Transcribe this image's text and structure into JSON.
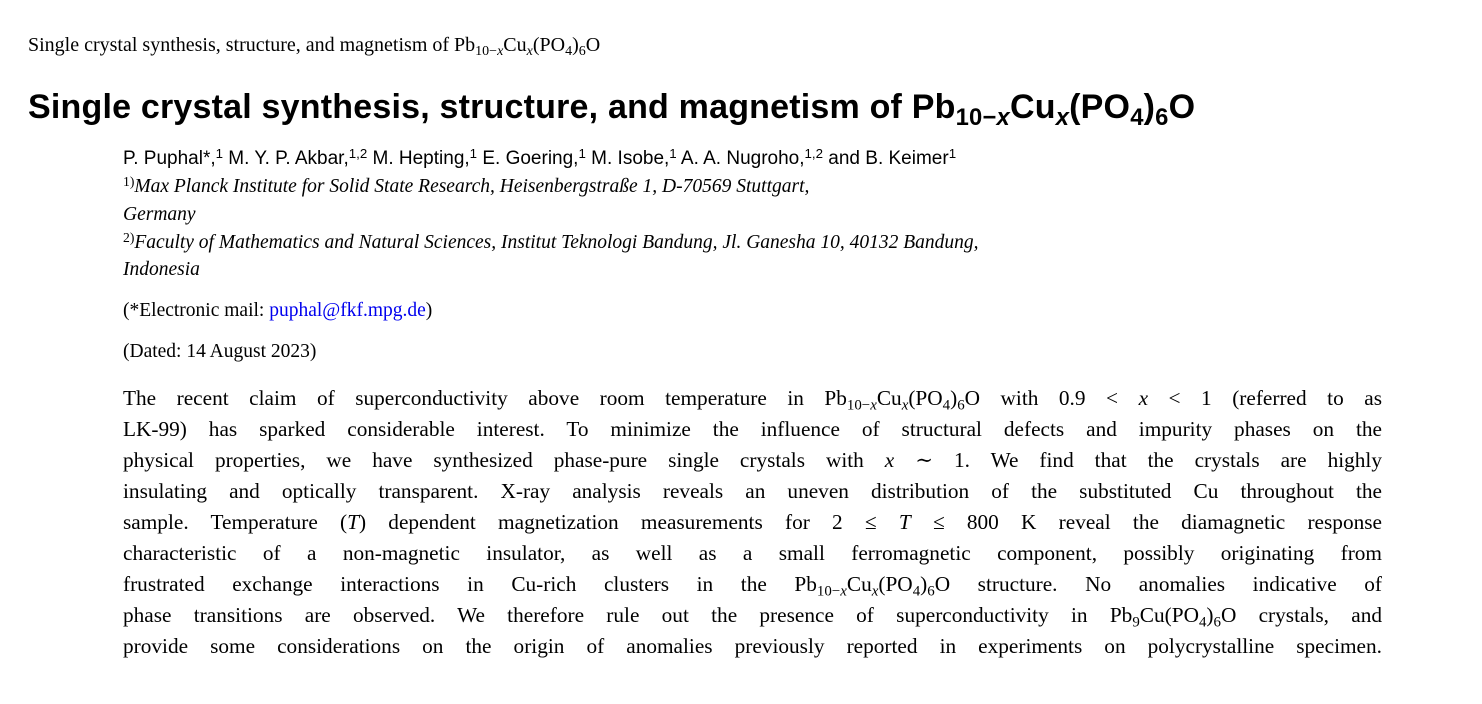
{
  "running_head": [
    [
      "t",
      "Single crystal synthesis, structure, and magnetism of Pb"
    ],
    [
      "s",
      "10−"
    ],
    [
      "si",
      "x"
    ],
    [
      "t",
      "Cu"
    ],
    [
      "si",
      "x"
    ],
    [
      "t",
      "(PO"
    ],
    [
      "s",
      "4"
    ],
    [
      "t",
      ")"
    ],
    [
      "s",
      "6"
    ],
    [
      "t",
      "O"
    ]
  ],
  "title": [
    [
      "t",
      "Single crystal synthesis, structure, and magnetism of Pb"
    ],
    [
      "s",
      "10−"
    ],
    [
      "si",
      "x"
    ],
    [
      "t",
      "Cu"
    ],
    [
      "si",
      "x"
    ],
    [
      "t",
      "(PO"
    ],
    [
      "s",
      "4"
    ],
    [
      "t",
      ")"
    ],
    [
      "s",
      "6"
    ],
    [
      "t",
      "O"
    ]
  ],
  "authors": [
    [
      "t",
      "P. Puphal*,"
    ],
    [
      "p",
      "1"
    ],
    [
      "t",
      " M. Y. P. Akbar,"
    ],
    [
      "p",
      "1,2"
    ],
    [
      "t",
      " M. Hepting,"
    ],
    [
      "p",
      "1"
    ],
    [
      "t",
      " E. Goering,"
    ],
    [
      "p",
      "1"
    ],
    [
      "t",
      " M. Isobe,"
    ],
    [
      "p",
      "1"
    ],
    [
      "t",
      " A. A. Nugroho,"
    ],
    [
      "p",
      "1,2"
    ],
    [
      "t",
      " and B. Keimer"
    ],
    [
      "p",
      "1"
    ]
  ],
  "affiliations": [
    {
      "mark": "1)",
      "line1": "Max Planck Institute for Solid State Research, Heisenbergstraße 1, D-70569 Stuttgart,",
      "line2": "Germany"
    },
    {
      "mark": "2)",
      "line1": "Faculty of Mathematics and Natural Sciences, Institut Teknologi Bandung, Jl.  Ganesha 10, 40132 Bandung,",
      "line2": "Indonesia"
    }
  ],
  "email": {
    "prefix": "(*Electronic mail: ",
    "address": "puphal@fkf.mpg.de",
    "suffix": ")"
  },
  "dated": "(Dated: 14 August 2023)",
  "abstract_lines": [
    [
      [
        "t",
        "The recent claim of superconductivity above room temperature in Pb"
      ],
      [
        "s",
        "10−"
      ],
      [
        "si",
        "x"
      ],
      [
        "t",
        "Cu"
      ],
      [
        "si",
        "x"
      ],
      [
        "t",
        "(PO"
      ],
      [
        "s",
        "4"
      ],
      [
        "t",
        ")"
      ],
      [
        "s",
        "6"
      ],
      [
        "t",
        "O with 0.9 < "
      ],
      [
        "i",
        "x"
      ],
      [
        "t",
        " < 1 (referred to as"
      ]
    ],
    [
      [
        "t",
        "LK-99) has sparked considerable interest. To minimize the influence of structural defects and impurity phases on the"
      ]
    ],
    [
      [
        "t",
        "physical properties, we have synthesized phase-pure single crystals with "
      ],
      [
        "i",
        "x"
      ],
      [
        "t",
        " ∼ 1. We find that the crystals are highly"
      ]
    ],
    [
      [
        "t",
        "insulating and optically transparent. X-ray analysis reveals an uneven distribution of the substituted Cu throughout the"
      ]
    ],
    [
      [
        "t",
        "sample. Temperature ("
      ],
      [
        "i",
        "T"
      ],
      [
        "t",
        ") dependent magnetization measurements for 2 ≤ "
      ],
      [
        "i",
        "T"
      ],
      [
        "t",
        " ≤ 800 K reveal the diamagnetic response"
      ]
    ],
    [
      [
        "t",
        "characteristic of a non-magnetic insulator, as well as a small ferromagnetic component, possibly originating from"
      ]
    ],
    [
      [
        "t",
        "frustrated exchange interactions in Cu-rich clusters in the Pb"
      ],
      [
        "s",
        "10−"
      ],
      [
        "si",
        "x"
      ],
      [
        "t",
        "Cu"
      ],
      [
        "si",
        "x"
      ],
      [
        "t",
        "(PO"
      ],
      [
        "s",
        "4"
      ],
      [
        "t",
        ")"
      ],
      [
        "s",
        "6"
      ],
      [
        "t",
        "O structure. No anomalies indicative of"
      ]
    ],
    [
      [
        "t",
        "phase transitions are observed. We therefore rule out the presence of superconductivity in Pb"
      ],
      [
        "s",
        "9"
      ],
      [
        "t",
        "Cu(PO"
      ],
      [
        "s",
        "4"
      ],
      [
        "t",
        ")"
      ],
      [
        "s",
        "6"
      ],
      [
        "t",
        "O crystals, and"
      ]
    ],
    [
      [
        "t",
        "provide some considerations on the origin of anomalies previously reported in experiments on polycrystalline specimen."
      ]
    ]
  ],
  "colors": {
    "link": "#0000ee",
    "text": "#000000"
  }
}
